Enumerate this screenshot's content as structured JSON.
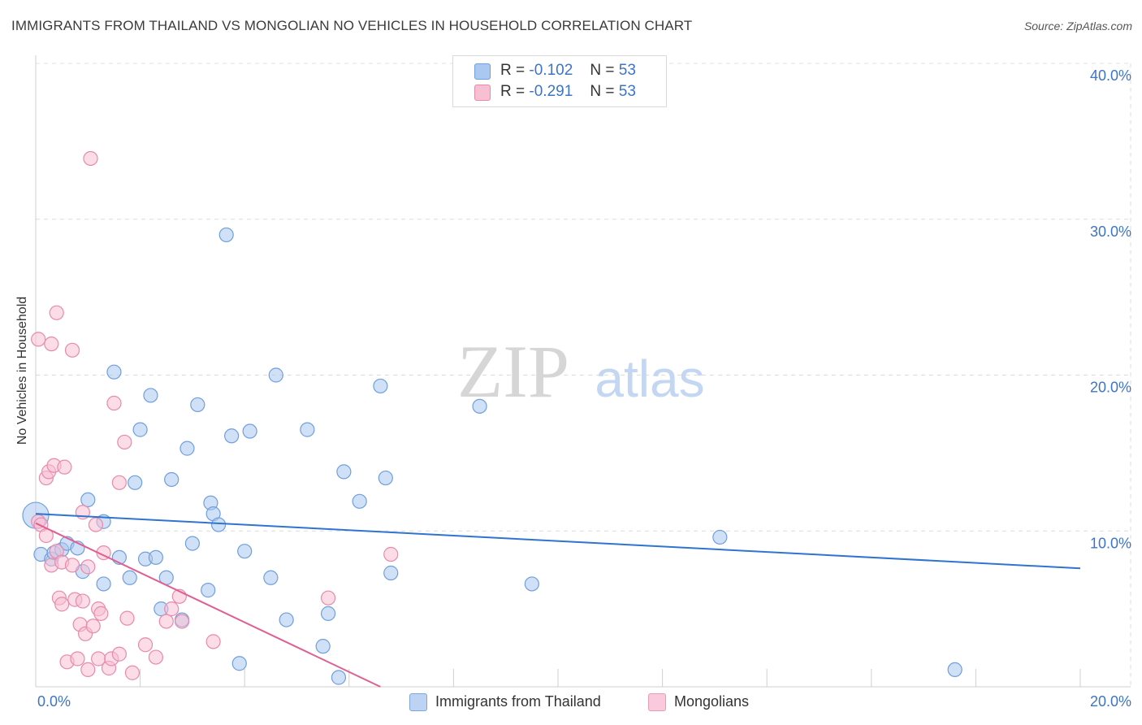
{
  "title": "IMMIGRANTS FROM THAILAND VS MONGOLIAN NO VEHICLES IN HOUSEHOLD CORRELATION CHART",
  "source": "Source: ZipAtlas.com",
  "watermark": {
    "zip": "ZIP",
    "atlas": "atlas"
  },
  "legend": {
    "r_label": "R =",
    "n_label": "N =",
    "rows": [
      {
        "r": "-0.102",
        "n": "53",
        "color": "#aac8f0",
        "border": "#6f9fdc"
      },
      {
        "r": "-0.291",
        "n": "53",
        "color": "#f8bfd3",
        "border": "#e88aab"
      }
    ]
  },
  "bottom_legend": [
    {
      "label": "Immigrants from Thailand",
      "color": "#bcd3f3",
      "border": "#7ea7de"
    },
    {
      "label": "Mongolians",
      "color": "#f9cadb",
      "border": "#e99ab5"
    }
  ],
  "chart_data": {
    "type": "scatter",
    "ylabel": "No Vehicles in Household",
    "xlabel": "",
    "xlim": [
      0,
      20
    ],
    "ylim": [
      0,
      40
    ],
    "x_tick_labels": [
      "0.0%",
      "20.0%"
    ],
    "y_tick_labels": [
      "10.0%",
      "20.0%",
      "30.0%",
      "40.0%"
    ],
    "y_ticks": [
      10,
      20,
      30,
      40
    ],
    "grid": "dashed horizontal",
    "series": [
      {
        "name": "Immigrants from Thailand",
        "color": "#aac8f0",
        "stroke": "#6f9fdc",
        "trend_color": "#2f74cf",
        "trend": {
          "x0": 0,
          "y0": 11.1,
          "x1": 20,
          "y1": 7.6
        },
        "points": [
          [
            0.0,
            11.0
          ],
          [
            0.1,
            8.5
          ],
          [
            0.3,
            8.2
          ],
          [
            0.35,
            8.6
          ],
          [
            0.5,
            8.8
          ],
          [
            0.6,
            9.2
          ],
          [
            0.8,
            8.9
          ],
          [
            0.9,
            7.4
          ],
          [
            1.0,
            12.0
          ],
          [
            1.3,
            10.6
          ],
          [
            1.3,
            6.6
          ],
          [
            1.5,
            20.2
          ],
          [
            1.6,
            8.3
          ],
          [
            1.8,
            7.0
          ],
          [
            1.9,
            13.1
          ],
          [
            2.0,
            16.5
          ],
          [
            2.1,
            8.2
          ],
          [
            2.2,
            18.7
          ],
          [
            2.3,
            8.3
          ],
          [
            2.4,
            5.0
          ],
          [
            2.5,
            7.0
          ],
          [
            2.6,
            13.3
          ],
          [
            2.8,
            4.3
          ],
          [
            2.9,
            15.3
          ],
          [
            3.0,
            9.2
          ],
          [
            3.1,
            18.1
          ],
          [
            3.3,
            6.2
          ],
          [
            3.35,
            11.8
          ],
          [
            3.4,
            11.1
          ],
          [
            3.5,
            10.4
          ],
          [
            3.65,
            29.0
          ],
          [
            3.75,
            16.1
          ],
          [
            3.9,
            1.5
          ],
          [
            4.0,
            8.7
          ],
          [
            4.1,
            16.4
          ],
          [
            4.5,
            7.0
          ],
          [
            4.6,
            20.0
          ],
          [
            4.8,
            4.3
          ],
          [
            5.2,
            16.5
          ],
          [
            5.5,
            2.6
          ],
          [
            5.6,
            4.7
          ],
          [
            5.8,
            0.6
          ],
          [
            5.9,
            13.8
          ],
          [
            6.2,
            11.9
          ],
          [
            6.6,
            19.3
          ],
          [
            6.7,
            13.4
          ],
          [
            6.8,
            7.3
          ],
          [
            8.5,
            18.0
          ],
          [
            9.5,
            6.6
          ],
          [
            13.1,
            9.6
          ],
          [
            17.6,
            1.1
          ]
        ]
      },
      {
        "name": "Mongolians",
        "color": "#f8bfd3",
        "stroke": "#e88aab",
        "trend_color": "#e05f92",
        "trend": {
          "x0": 0,
          "y0": 10.5,
          "x1": 6.6,
          "y1": 0.0
        },
        "points": [
          [
            0.05,
            22.3
          ],
          [
            0.05,
            10.6
          ],
          [
            0.1,
            10.4
          ],
          [
            0.2,
            9.7
          ],
          [
            0.2,
            13.4
          ],
          [
            0.25,
            13.8
          ],
          [
            0.3,
            7.8
          ],
          [
            0.3,
            22.0
          ],
          [
            0.35,
            14.2
          ],
          [
            0.4,
            8.7
          ],
          [
            0.4,
            24.0
          ],
          [
            0.45,
            5.7
          ],
          [
            0.5,
            8.0
          ],
          [
            0.5,
            5.3
          ],
          [
            0.55,
            14.1
          ],
          [
            0.6,
            1.6
          ],
          [
            0.7,
            21.6
          ],
          [
            0.7,
            7.8
          ],
          [
            0.75,
            5.6
          ],
          [
            0.8,
            1.8
          ],
          [
            0.85,
            4.0
          ],
          [
            0.9,
            5.5
          ],
          [
            0.9,
            11.2
          ],
          [
            0.95,
            3.4
          ],
          [
            1.0,
            1.1
          ],
          [
            1.0,
            7.7
          ],
          [
            1.05,
            33.9
          ],
          [
            1.1,
            3.9
          ],
          [
            1.15,
            10.4
          ],
          [
            1.2,
            5.0
          ],
          [
            1.2,
            1.8
          ],
          [
            1.25,
            4.7
          ],
          [
            1.3,
            8.6
          ],
          [
            1.4,
            1.2
          ],
          [
            1.45,
            1.8
          ],
          [
            1.5,
            18.2
          ],
          [
            1.6,
            13.1
          ],
          [
            1.6,
            2.1
          ],
          [
            1.7,
            15.7
          ],
          [
            1.75,
            4.4
          ],
          [
            1.85,
            0.9
          ],
          [
            2.1,
            2.7
          ],
          [
            2.3,
            1.9
          ],
          [
            2.5,
            4.2
          ],
          [
            2.6,
            5.0
          ],
          [
            2.75,
            5.8
          ],
          [
            2.8,
            4.2
          ],
          [
            3.4,
            2.9
          ],
          [
            5.6,
            5.7
          ],
          [
            6.8,
            8.5
          ]
        ]
      }
    ]
  }
}
